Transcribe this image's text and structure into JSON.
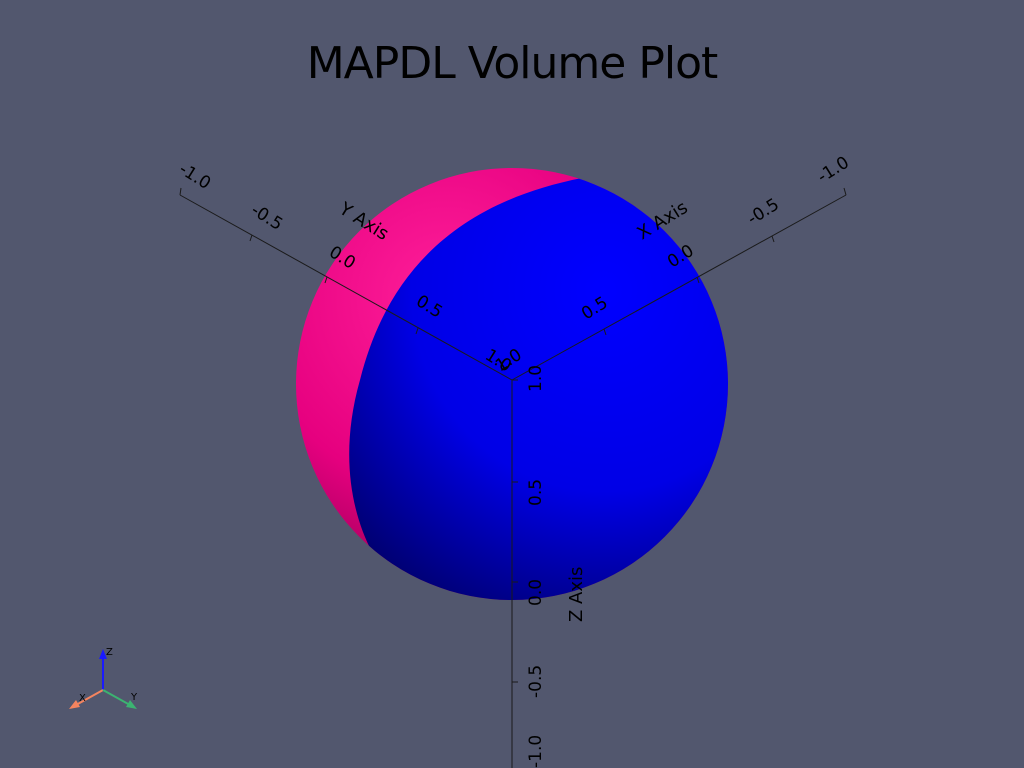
{
  "title": "MAPDL Volume Plot",
  "colors": {
    "background": "#52576e",
    "volume_1": "#e6007f",
    "volume_2": "#0000ff",
    "axis_x": "#f4845f",
    "axis_y": "#3cb371",
    "axis_z": "#1a1aff"
  },
  "axes": {
    "x": {
      "title": "X Axis",
      "ticks": [
        "-1.0",
        "-0.5",
        "0.0",
        "0.5",
        "1.0"
      ]
    },
    "y": {
      "title": "Y Axis",
      "ticks": [
        "-1.0",
        "-0.5",
        "0.0",
        "0.5",
        "1.0"
      ]
    },
    "z": {
      "title": "Z Axis",
      "ticks": [
        "1.0",
        "0.5",
        "0.0",
        "-0.5",
        "-1.0"
      ]
    }
  },
  "orientation_widget": {
    "x_label": "X",
    "y_label": "Y",
    "z_label": "Z"
  }
}
